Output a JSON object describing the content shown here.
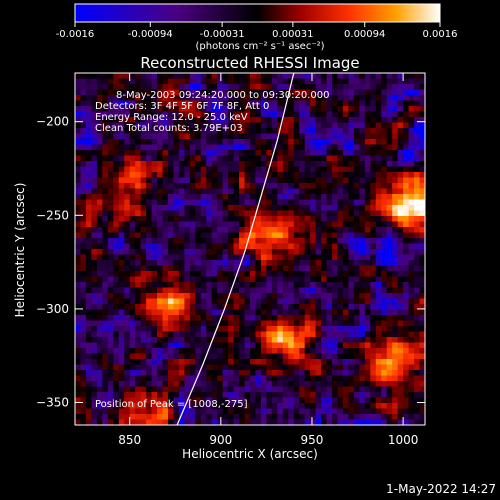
{
  "colorbar": {
    "ticks": [
      "-0.0016",
      "-0.00094",
      "-0.00031",
      "0.00031",
      "0.00094",
      "0.0016"
    ],
    "tick_values": [
      -0.0016,
      -0.00094,
      -0.00031,
      0.00031,
      0.00094,
      0.0016
    ],
    "unit_label": "(photons cm⁻² s⁻¹ asec⁻²)"
  },
  "annotations": {
    "time_range": "8-May-2003 09:24:20.000 to 09:30:20.000",
    "detectors": "Detectors: 3F 4F 5F 6F 7F 8F, Att 0",
    "energy": "Energy Range: 12.0 - 25.0 keV",
    "clean": "Clean     Total counts: 3.79E+03",
    "peak": "Position of Peak = [1008,-275]"
  },
  "footer_timestamp": "1-May-2022 14:27",
  "chart_data": {
    "type": "heatmap",
    "title": "Reconstructed RHESSI Image",
    "xlabel": "Heliocentric X (arcsec)",
    "ylabel": "Heliocentric Y (arcsec)",
    "xlim": [
      820,
      1012
    ],
    "ylim": [
      -362,
      -174
    ],
    "x_ticks": [
      850,
      900,
      950,
      1000
    ],
    "y_ticks": [
      -200,
      -250,
      -300,
      -350
    ],
    "x_tick_labels": [
      "850",
      "900",
      "950",
      "1000"
    ],
    "y_tick_labels": [
      "−200",
      "−250",
      "−300",
      "−350"
    ],
    "value_range": [
      -0.0016,
      0.0016
    ],
    "colormap": [
      "#0000ff",
      "#4a0080",
      "#000000",
      "#a00000",
      "#ff3000",
      "#ffa000",
      "#ffffff"
    ],
    "peak_position": [
      1008,
      -275
    ],
    "limb_curve": [
      [
        876,
        -362
      ],
      [
        890,
        -330
      ],
      [
        902,
        -300
      ],
      [
        913,
        -270
      ],
      [
        922,
        -240
      ],
      [
        931,
        -210
      ],
      [
        940,
        -174
      ]
    ]
  }
}
